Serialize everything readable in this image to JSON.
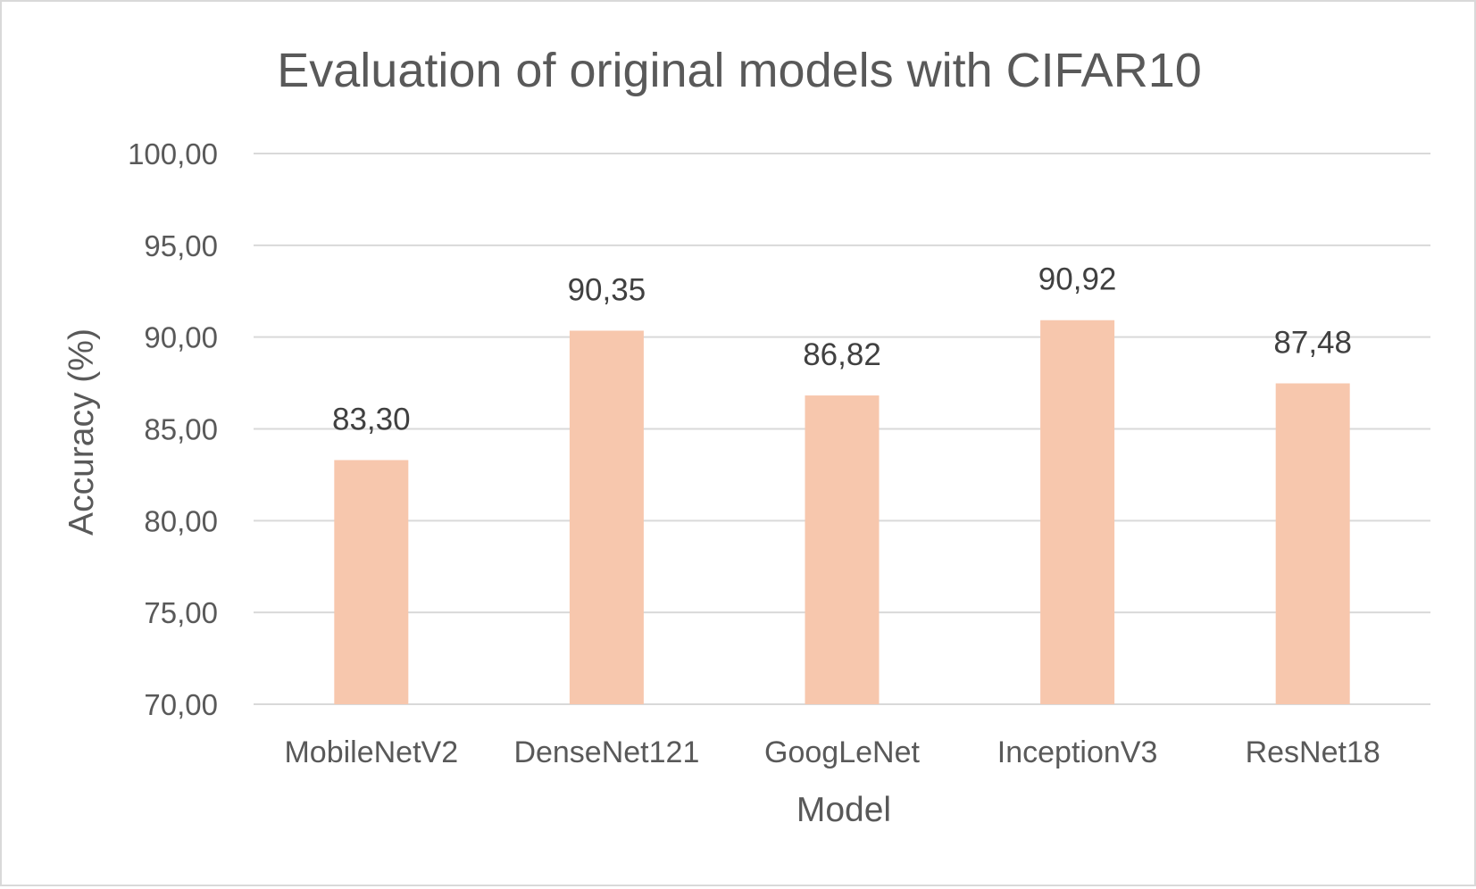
{
  "chart_data": {
    "type": "bar",
    "title": "Evaluation of original models with CIFAR10",
    "xlabel": "Model",
    "ylabel": "Accuracy (%)",
    "categories": [
      "MobileNetV2",
      "DenseNet121",
      "GoogLeNet",
      "InceptionV3",
      "ResNet18"
    ],
    "values": [
      83.3,
      90.35,
      86.82,
      90.92,
      87.48
    ],
    "value_labels": [
      "83,30",
      "90,35",
      "86,82",
      "90,92",
      "87,48"
    ],
    "ylim": [
      70,
      100
    ],
    "yticks": [
      70,
      75,
      80,
      85,
      90,
      95,
      100
    ],
    "ytick_labels": [
      "70,00",
      "75,00",
      "80,00",
      "85,00",
      "90,00",
      "95,00",
      "100,00"
    ],
    "grid": true,
    "legend": "none",
    "colors": {
      "bar": "#f7c7ad",
      "grid": "#d9d9d9",
      "text": "#595959",
      "data_label": "#404040",
      "border": "#d9d9d9"
    }
  }
}
